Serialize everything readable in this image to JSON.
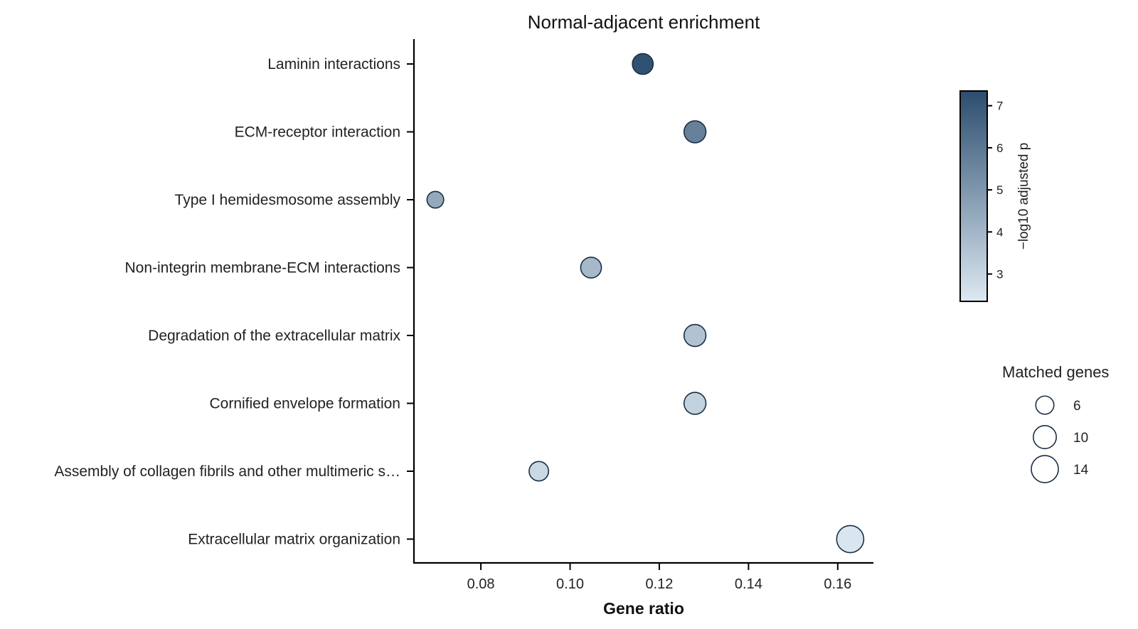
{
  "chart_data": {
    "type": "scatter",
    "title": "Normal-adjacent enrichment",
    "xlabel": "Gene ratio",
    "ylabel": "",
    "xlim": [
      0.065,
      0.168
    ],
    "xticks": [
      0.08,
      0.1,
      0.12,
      0.14,
      0.16
    ],
    "xtick_labels": [
      "0.08",
      "0.10",
      "0.12",
      "0.14",
      "0.16"
    ],
    "categories": [
      "Laminin interactions",
      "ECM-receptor interaction",
      "Type I hemidesmosome assembly",
      "Non-integrin membrane-ECM interactions",
      "Degradation of the extracellular matrix",
      "Cornified envelope formation",
      "Assembly of collagen fibrils and other multimeric s…",
      "Extracellular matrix organization"
    ],
    "points": [
      {
        "term": "Laminin interactions",
        "gene_ratio": 0.1163,
        "neg_log10_padj": 7.2,
        "matched_genes": 8
      },
      {
        "term": "ECM-receptor interaction",
        "gene_ratio": 0.128,
        "neg_log10_padj": 5.7,
        "matched_genes": 9
      },
      {
        "term": "Type I hemidesmosome assembly",
        "gene_ratio": 0.0698,
        "neg_log10_padj": 4.4,
        "matched_genes": 5
      },
      {
        "term": "Non-integrin membrane-ECM interactions",
        "gene_ratio": 0.1047,
        "neg_log10_padj": 3.9,
        "matched_genes": 8
      },
      {
        "term": "Degradation of the extracellular matrix",
        "gene_ratio": 0.128,
        "neg_log10_padj": 3.6,
        "matched_genes": 9
      },
      {
        "term": "Cornified envelope formation",
        "gene_ratio": 0.128,
        "neg_log10_padj": 3.1,
        "matched_genes": 9
      },
      {
        "term": "Assembly of collagen fibrils and other multimeric s…",
        "gene_ratio": 0.093,
        "neg_log10_padj": 2.9,
        "matched_genes": 7
      },
      {
        "term": "Extracellular matrix organization",
        "gene_ratio": 0.1628,
        "neg_log10_padj": 2.45,
        "matched_genes": 14
      }
    ],
    "colorbar": {
      "label": "−log10 adjusted p",
      "range": [
        2.35,
        7.35
      ],
      "ticks": [
        3,
        4,
        5,
        6,
        7
      ],
      "colors": [
        "#dde9f3",
        "#2b4d6e"
      ]
    },
    "size_legend": {
      "title": "Matched genes",
      "values": [
        6,
        10,
        14
      ],
      "labels": [
        "6",
        "10",
        "14"
      ]
    },
    "grid": false,
    "legend_position": "right"
  }
}
